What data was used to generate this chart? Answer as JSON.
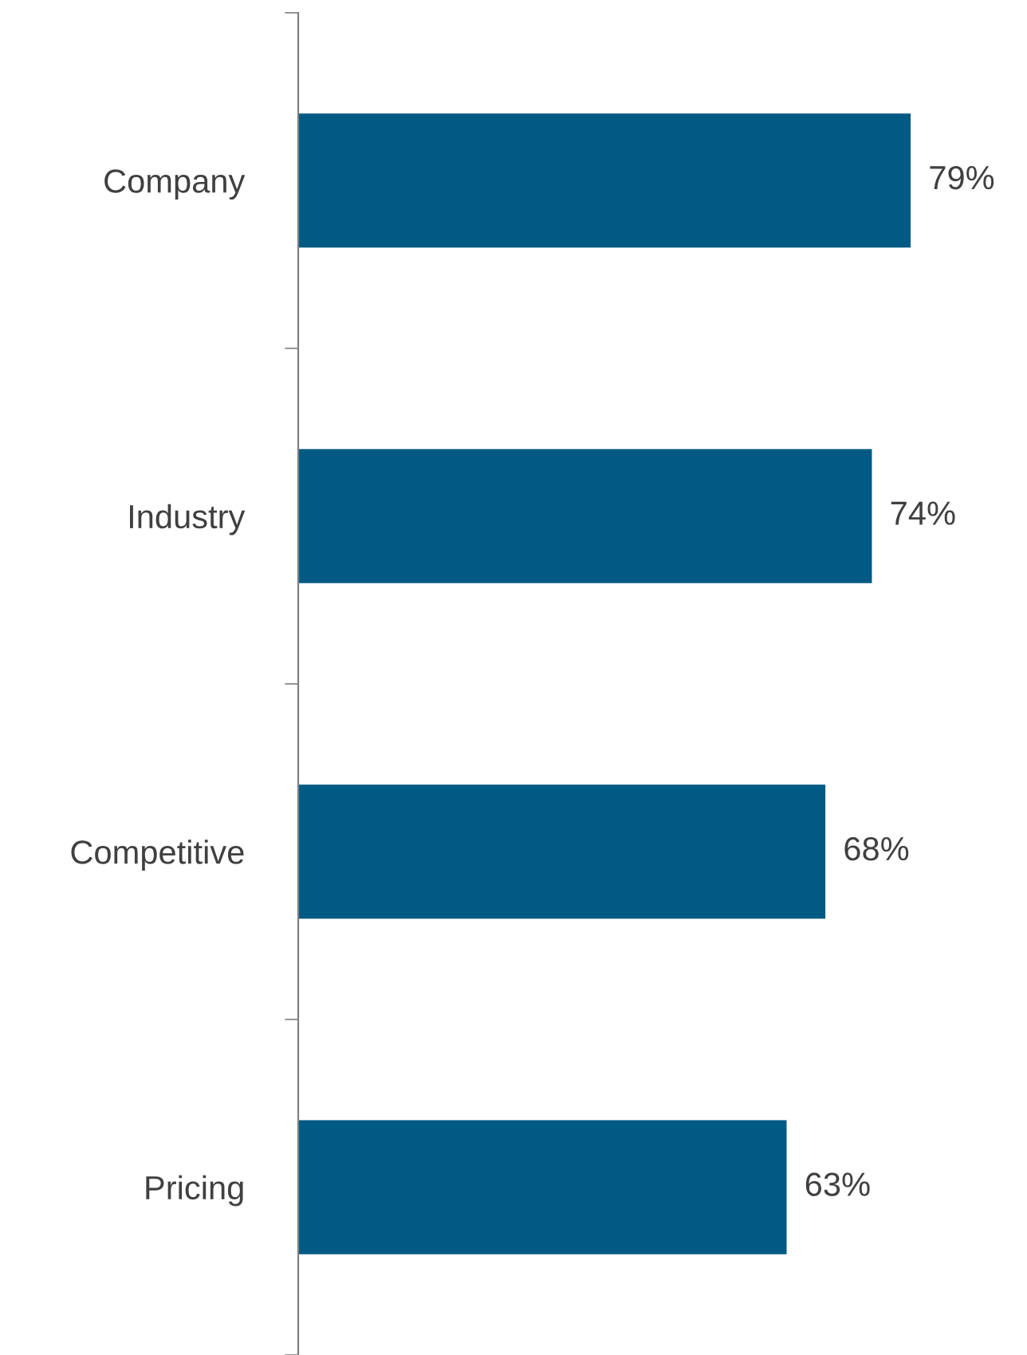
{
  "chart_data": {
    "type": "bar",
    "orientation": "horizontal",
    "categories": [
      "Company",
      "Industry",
      "Competitive",
      "Pricing"
    ],
    "values": [
      79,
      74,
      68,
      63
    ],
    "value_labels": [
      "79%",
      "74%",
      "68%",
      "63%"
    ],
    "color": "#005a84",
    "tick_labels": "y",
    "grid": false,
    "legend": false
  }
}
